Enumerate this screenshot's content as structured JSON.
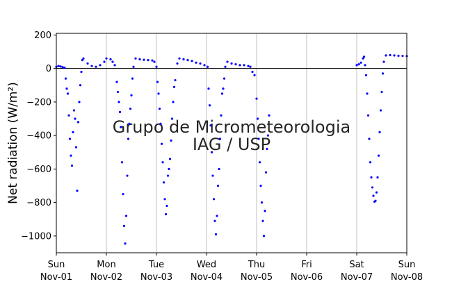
{
  "chart_data": {
    "type": "scatter",
    "title": "",
    "ylabel": "Net radiation (W/m²)",
    "xlabel": "",
    "watermark": [
      "Grupo de Micrometeorologia",
      "IAG / USP"
    ],
    "xlim": [
      "2015-11-01",
      "2015-11-08"
    ],
    "ylim": [
      -1100,
      210
    ],
    "yticks": [
      200,
      0,
      -200,
      -400,
      -600,
      -800,
      -1000
    ],
    "ytick_labels": [
      "200",
      "0",
      "−200",
      "−400",
      "−600",
      "−800",
      "−1000"
    ],
    "xticks": [
      {
        "date": "2015-11-01",
        "day": "Sun",
        "date_label": "Nov-01"
      },
      {
        "date": "2015-11-02",
        "day": "Mon",
        "date_label": "Nov-02"
      },
      {
        "date": "2015-11-03",
        "day": "Tue",
        "date_label": "Nov-03"
      },
      {
        "date": "2015-11-04",
        "day": "Wed",
        "date_label": "Nov-04"
      },
      {
        "date": "2015-11-05",
        "day": "Thu",
        "date_label": "Nov-05"
      },
      {
        "date": "2015-11-06",
        "day": "Fri",
        "date_label": "Nov-06"
      },
      {
        "date": "2015-11-07",
        "day": "Sat",
        "date_label": "Nov-07"
      },
      {
        "date": "2015-11-08",
        "day": "Sun",
        "date_label": "Nov-08"
      }
    ],
    "grid": "vertical at day boundaries",
    "zero_line": true,
    "point_color": "#0000ff",
    "series": [
      {
        "points": [
          [
            "2015-11-01 00:00",
            10
          ],
          [
            "2015-11-01 01:00",
            15
          ],
          [
            "2015-11-01 02:00",
            12
          ],
          [
            "2015-11-01 03:00",
            8
          ],
          [
            "2015-11-01 04:00",
            5
          ],
          [
            "2015-11-01 04:30",
            -60
          ],
          [
            "2015-11-01 05:00",
            -120
          ],
          [
            "2015-11-01 05:30",
            -150
          ],
          [
            "2015-11-01 06:00",
            -280
          ],
          [
            "2015-11-01 06:30",
            -420
          ],
          [
            "2015-11-01 07:00",
            -520
          ],
          [
            "2015-11-01 07:30",
            -580
          ],
          [
            "2015-11-01 08:00",
            -380
          ],
          [
            "2015-11-01 08:30",
            -250
          ],
          [
            "2015-11-01 09:00",
            -300
          ],
          [
            "2015-11-01 09:30",
            -470
          ],
          [
            "2015-11-01 10:00",
            -730
          ],
          [
            "2015-11-01 10:30",
            -320
          ],
          [
            "2015-11-01 11:00",
            -200
          ],
          [
            "2015-11-01 11:30",
            -100
          ],
          [
            "2015-11-01 12:00",
            -20
          ],
          [
            "2015-11-01 12:30",
            50
          ],
          [
            "2015-11-01 13:00",
            60
          ],
          [
            "2015-11-01 15:00",
            30
          ],
          [
            "2015-11-01 17:00",
            15
          ],
          [
            "2015-11-01 19:00",
            10
          ],
          [
            "2015-11-01 21:00",
            20
          ],
          [
            "2015-11-01 23:00",
            40
          ],
          [
            "2015-11-02 00:00",
            60
          ],
          [
            "2015-11-02 02:00",
            55
          ],
          [
            "2015-11-02 03:00",
            40
          ],
          [
            "2015-11-02 04:00",
            20
          ],
          [
            "2015-11-02 05:00",
            -80
          ],
          [
            "2015-11-02 05:30",
            -140
          ],
          [
            "2015-11-02 06:00",
            -200
          ],
          [
            "2015-11-02 06:30",
            -260
          ],
          [
            "2015-11-02 07:00",
            -350
          ],
          [
            "2015-11-02 07:30",
            -560
          ],
          [
            "2015-11-02 08:00",
            -750
          ],
          [
            "2015-11-02 08:30",
            -940
          ],
          [
            "2015-11-02 09:00",
            -1045
          ],
          [
            "2015-11-02 09:30",
            -880
          ],
          [
            "2015-11-02 10:00",
            -640
          ],
          [
            "2015-11-02 10:30",
            -420
          ],
          [
            "2015-11-02 11:00",
            -330
          ],
          [
            "2015-11-02 11:30",
            -240
          ],
          [
            "2015-11-02 12:00",
            -160
          ],
          [
            "2015-11-02 12:30",
            -60
          ],
          [
            "2015-11-02 13:00",
            10
          ],
          [
            "2015-11-02 14:00",
            60
          ],
          [
            "2015-11-02 16:00",
            55
          ],
          [
            "2015-11-02 18:00",
            52
          ],
          [
            "2015-11-02 20:00",
            50
          ],
          [
            "2015-11-02 22:00",
            48
          ],
          [
            "2015-11-02 23:00",
            40
          ],
          [
            "2015-11-03 00:00",
            10
          ],
          [
            "2015-11-03 00:30",
            -80
          ],
          [
            "2015-11-03 01:00",
            -150
          ],
          [
            "2015-11-03 01:30",
            -240
          ],
          [
            "2015-11-03 02:00",
            -330
          ],
          [
            "2015-11-03 02:30",
            -450
          ],
          [
            "2015-11-03 03:00",
            -560
          ],
          [
            "2015-11-03 03:30",
            -680
          ],
          [
            "2015-11-03 04:00",
            -780
          ],
          [
            "2015-11-03 04:30",
            -870
          ],
          [
            "2015-11-03 05:00",
            -820
          ],
          [
            "2015-11-03 05:30",
            -640
          ],
          [
            "2015-11-03 06:00",
            -600
          ],
          [
            "2015-11-03 06:30",
            -540
          ],
          [
            "2015-11-03 07:00",
            -430
          ],
          [
            "2015-11-03 07:30",
            -300
          ],
          [
            "2015-11-03 08:00",
            -200
          ],
          [
            "2015-11-03 08:30",
            -110
          ],
          [
            "2015-11-03 09:00",
            -70
          ],
          [
            "2015-11-03 10:00",
            30
          ],
          [
            "2015-11-03 11:00",
            60
          ],
          [
            "2015-11-03 13:00",
            55
          ],
          [
            "2015-11-03 15:00",
            50
          ],
          [
            "2015-11-03 17:00",
            45
          ],
          [
            "2015-11-03 19:00",
            35
          ],
          [
            "2015-11-03 21:00",
            30
          ],
          [
            "2015-11-03 23:00",
            20
          ],
          [
            "2015-11-04 00:30",
            10
          ],
          [
            "2015-11-04 01:00",
            -120
          ],
          [
            "2015-11-04 01:30",
            -220
          ],
          [
            "2015-11-04 02:00",
            -340
          ],
          [
            "2015-11-04 02:30",
            -500
          ],
          [
            "2015-11-04 03:00",
            -640
          ],
          [
            "2015-11-04 03:30",
            -780
          ],
          [
            "2015-11-04 04:00",
            -910
          ],
          [
            "2015-11-04 04:30",
            -990
          ],
          [
            "2015-11-04 05:00",
            -880
          ],
          [
            "2015-11-04 05:30",
            -700
          ],
          [
            "2015-11-04 06:00",
            -600
          ],
          [
            "2015-11-04 06:30",
            -420
          ],
          [
            "2015-11-04 07:00",
            -280
          ],
          [
            "2015-11-04 07:30",
            -150
          ],
          [
            "2015-11-04 08:00",
            -120
          ],
          [
            "2015-11-04 08:30",
            -60
          ],
          [
            "2015-11-04 09:00",
            10
          ],
          [
            "2015-11-04 10:00",
            40
          ],
          [
            "2015-11-04 12:00",
            30
          ],
          [
            "2015-11-04 14:00",
            25
          ],
          [
            "2015-11-04 16:00",
            20
          ],
          [
            "2015-11-04 18:00",
            20
          ],
          [
            "2015-11-04 20:00",
            15
          ],
          [
            "2015-11-04 21:00",
            10
          ],
          [
            "2015-11-04 22:00",
            -20
          ],
          [
            "2015-11-04 23:00",
            -40
          ],
          [
            "2015-11-05 00:00",
            -180
          ],
          [
            "2015-11-05 00:30",
            -300
          ],
          [
            "2015-11-05 01:00",
            -420
          ],
          [
            "2015-11-05 01:30",
            -560
          ],
          [
            "2015-11-05 02:00",
            -700
          ],
          [
            "2015-11-05 02:30",
            -800
          ],
          [
            "2015-11-05 03:00",
            -910
          ],
          [
            "2015-11-05 03:30",
            -1000
          ],
          [
            "2015-11-05 04:00",
            -850
          ],
          [
            "2015-11-05 04:30",
            -620
          ],
          [
            "2015-11-05 05:00",
            -480
          ],
          [
            "2015-11-05 05:30",
            -400
          ],
          [
            "2015-11-05 06:00",
            -280
          ],
          [
            "2015-11-07 00:00",
            20
          ],
          [
            "2015-11-07 01:00",
            25
          ],
          [
            "2015-11-07 02:00",
            35
          ],
          [
            "2015-11-07 03:00",
            60
          ],
          [
            "2015-11-07 03:30",
            70
          ],
          [
            "2015-11-07 04:00",
            20
          ],
          [
            "2015-11-07 04:30",
            -40
          ],
          [
            "2015-11-07 05:00",
            -150
          ],
          [
            "2015-11-07 05:30",
            -280
          ],
          [
            "2015-11-07 06:00",
            -420
          ],
          [
            "2015-11-07 06:30",
            -560
          ],
          [
            "2015-11-07 07:00",
            -650
          ],
          [
            "2015-11-07 07:30",
            -710
          ],
          [
            "2015-11-07 08:00",
            -760
          ],
          [
            "2015-11-07 08:30",
            -795
          ],
          [
            "2015-11-07 09:00",
            -790
          ],
          [
            "2015-11-07 09:30",
            -740
          ],
          [
            "2015-11-07 10:00",
            -650
          ],
          [
            "2015-11-07 10:30",
            -520
          ],
          [
            "2015-11-07 11:00",
            -380
          ],
          [
            "2015-11-07 11:30",
            -250
          ],
          [
            "2015-11-07 12:00",
            -140
          ],
          [
            "2015-11-07 12:30",
            -30
          ],
          [
            "2015-11-07 13:00",
            40
          ],
          [
            "2015-11-07 14:00",
            78
          ],
          [
            "2015-11-07 16:00",
            80
          ],
          [
            "2015-11-07 18:00",
            78
          ],
          [
            "2015-11-07 20:00",
            76
          ],
          [
            "2015-11-07 22:00",
            75
          ],
          [
            "2015-11-08 00:00",
            74
          ]
        ]
      }
    ]
  }
}
